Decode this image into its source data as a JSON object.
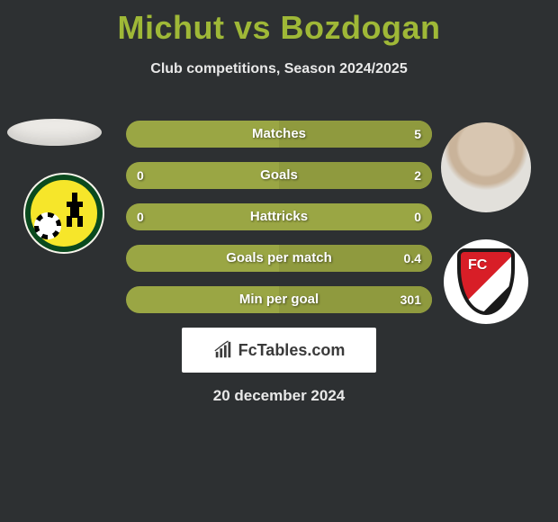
{
  "header": {
    "title": "Michut vs Bozdogan",
    "subtitle": "Club competitions, Season 2024/2025",
    "title_color": "#9fb837",
    "text_color": "#e8e8e8"
  },
  "background_color": "#2d3032",
  "player_left": {
    "name": "Michut",
    "club": "Fortuna Sittard",
    "club_colors": {
      "ring": "#0a4a1e",
      "disc": "#f6e62a",
      "bg": "#f6f3ea"
    }
  },
  "player_right": {
    "name": "Bozdogan",
    "club": "FC Utrecht",
    "club_colors": {
      "primary": "#d81e27",
      "secondary": "#1a1a1a",
      "bg": "#ffffff"
    }
  },
  "bars": {
    "track_color": "#9aa644",
    "fill_color": "#8f9a3e",
    "label_color": "#ffffff",
    "rows": [
      {
        "label": "Matches",
        "left": "",
        "right": "5",
        "left_pct": 0,
        "right_pct": 100
      },
      {
        "label": "Goals",
        "left": "0",
        "right": "2",
        "left_pct": 0,
        "right_pct": 100
      },
      {
        "label": "Hattricks",
        "left": "0",
        "right": "0",
        "left_pct": 0,
        "right_pct": 0
      },
      {
        "label": "Goals per match",
        "left": "",
        "right": "0.4",
        "left_pct": 0,
        "right_pct": 100
      },
      {
        "label": "Min per goal",
        "left": "",
        "right": "301",
        "left_pct": 0,
        "right_pct": 100
      }
    ]
  },
  "watermark": {
    "text": "FcTables.com"
  },
  "date": "20 december 2024"
}
